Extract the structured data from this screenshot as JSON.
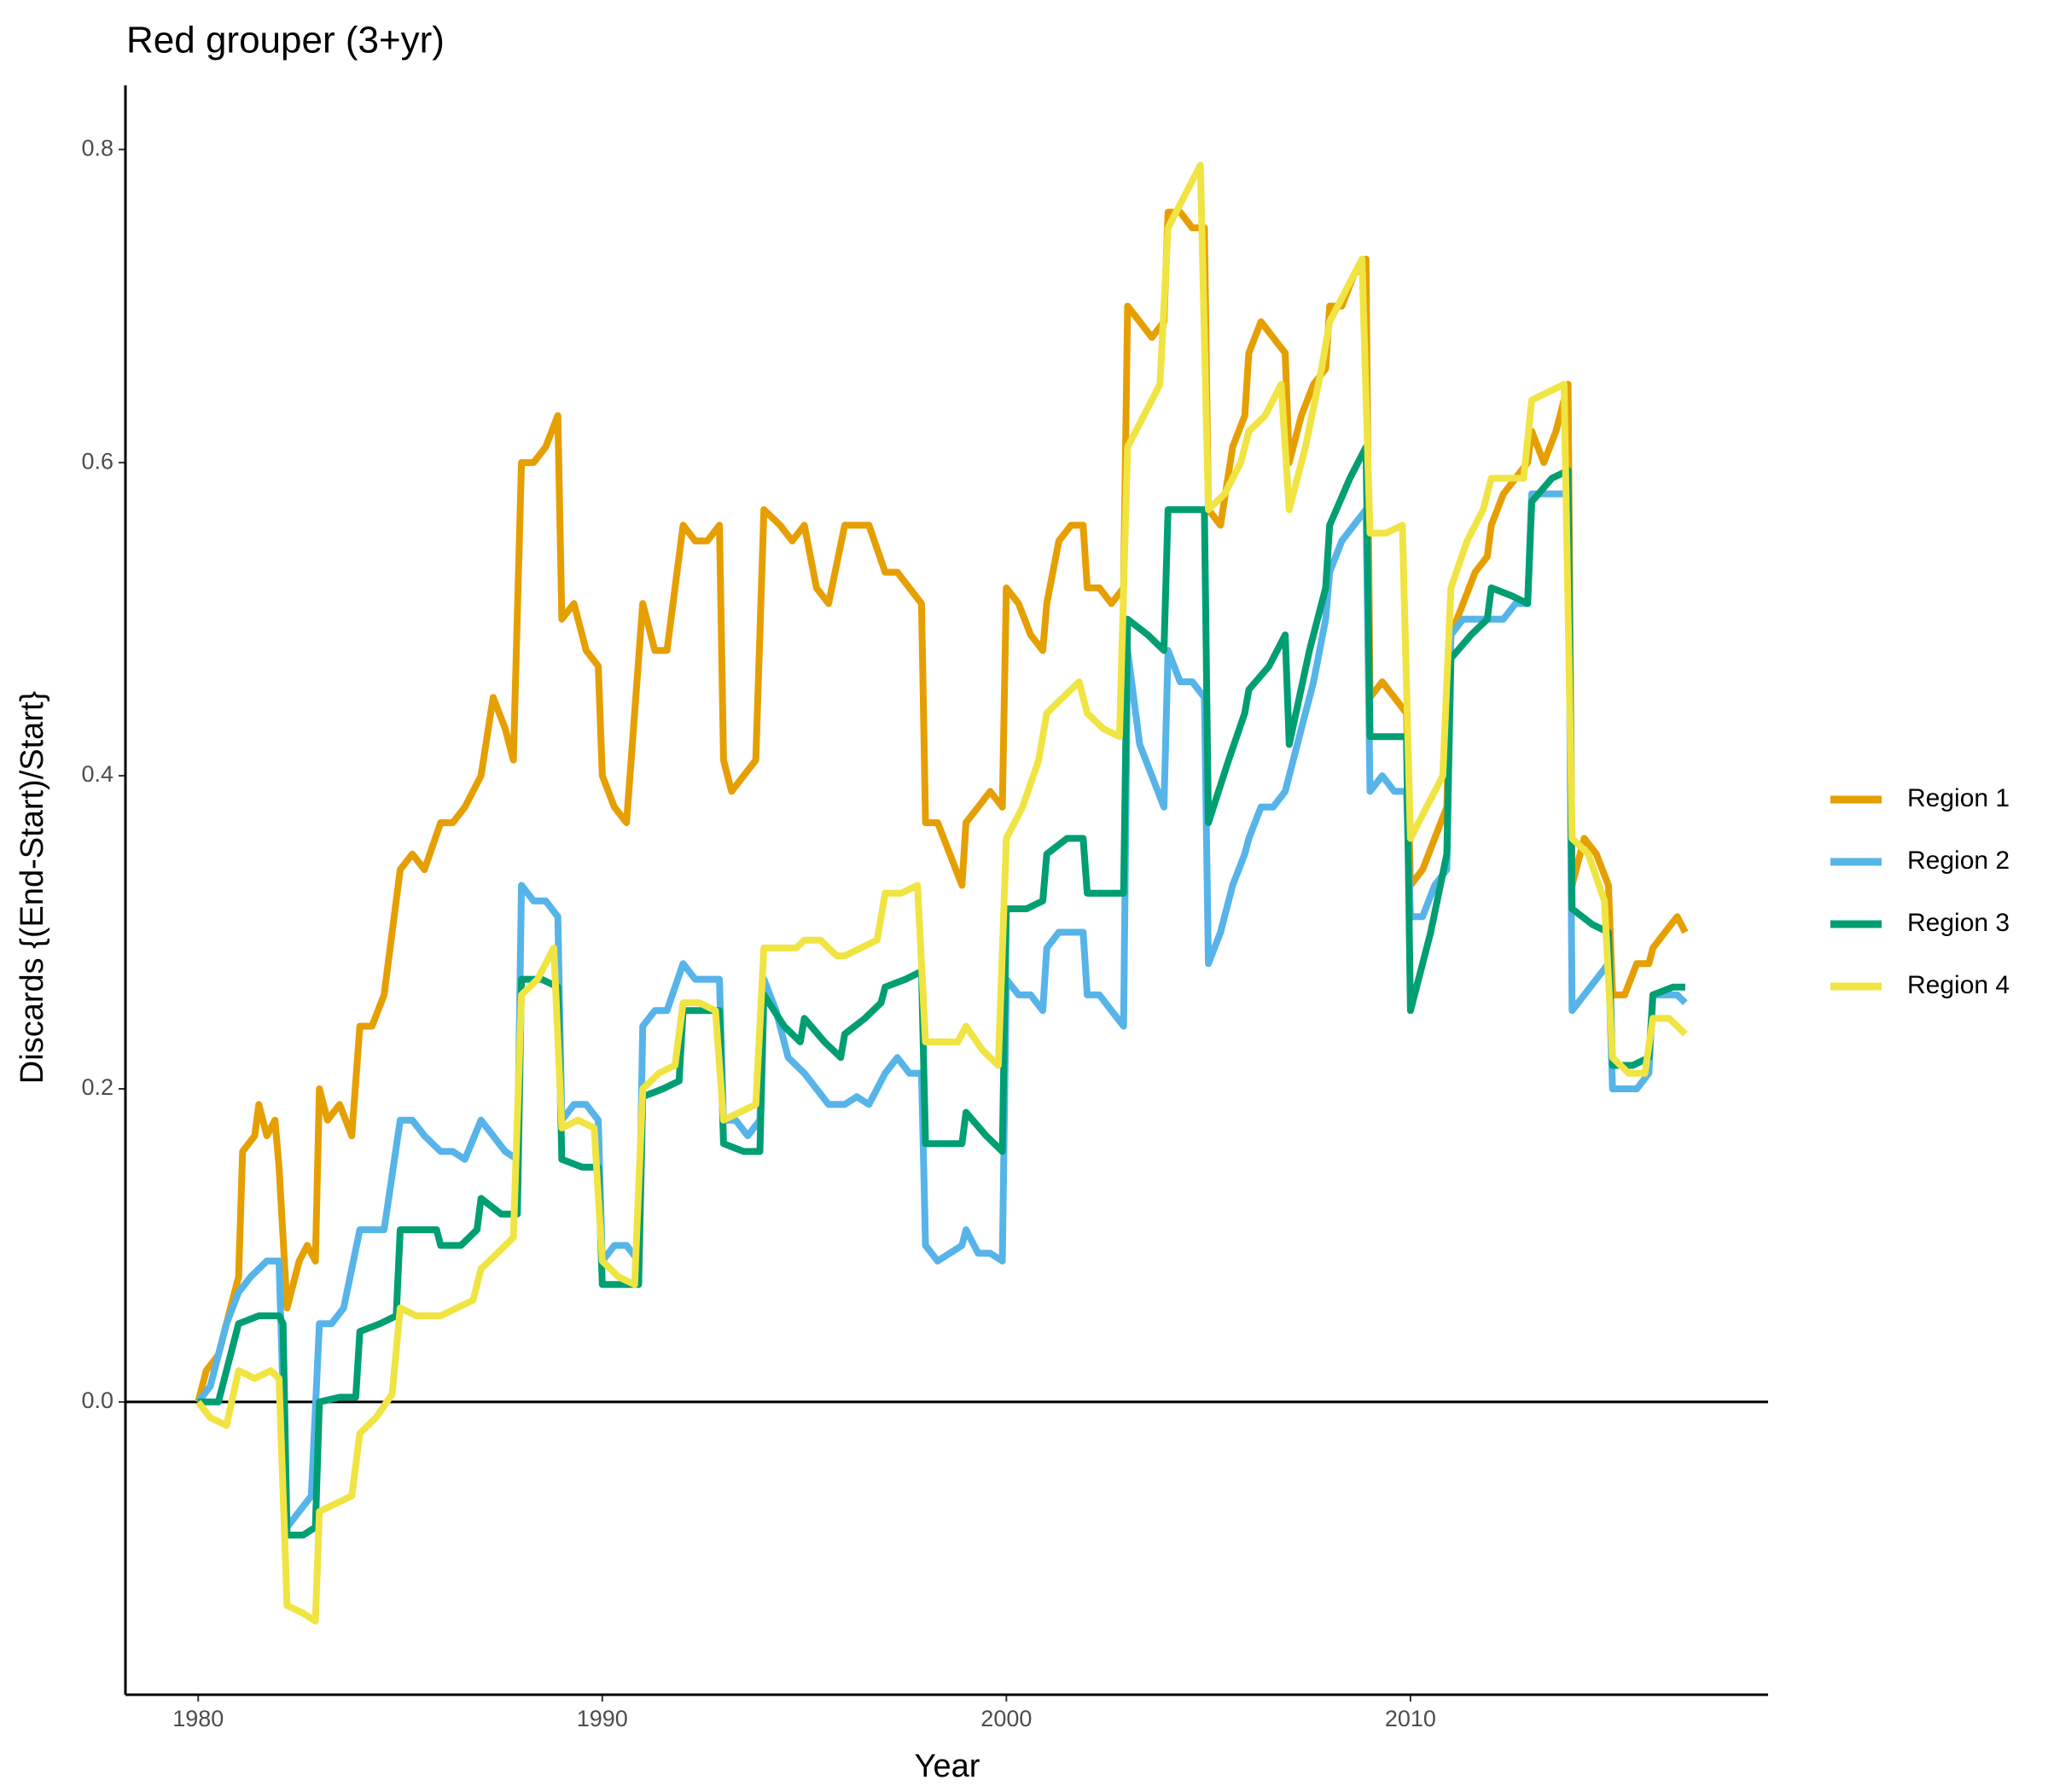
{
  "chart_data": {
    "type": "line",
    "title": "Red grouper (3+yr)",
    "x_label": "Year",
    "y_label": "Discards {(End-Start)/Start}",
    "xlim": [
      1978.2,
      2018.85
    ],
    "ylim": [
      -0.187,
      0.841
    ],
    "xticks": [
      1980,
      1990,
      2000,
      2010
    ],
    "yticks": [
      {
        "value": 0,
        "label": "0.0"
      },
      0.2,
      0.4,
      0.6,
      0.8
    ],
    "hline": 0,
    "grid": false,
    "legend": "right",
    "series": [
      {
        "name": "Region 1",
        "color": "#E69F00",
        "x": [
          1980.0,
          1980.2,
          1980.5,
          1980.8,
          1981.0,
          1981.1,
          1981.4,
          1981.5,
          1981.7,
          1981.9,
          1982.0,
          1982.2,
          1982.5,
          1982.7,
          1982.9,
          1983.0,
          1983.2,
          1983.5,
          1983.8,
          1984.0,
          1984.3,
          1984.6,
          1985.0,
          1985.3,
          1985.6,
          1986.0,
          1986.3,
          1986.6,
          1987.0,
          1987.3,
          1987.6,
          1987.8,
          1988.0,
          1988.3,
          1988.6,
          1988.9,
          1989.0,
          1989.3,
          1989.6,
          1989.9,
          1990.0,
          1990.3,
          1990.6,
          1991.0,
          1991.3,
          1991.6,
          1992.0,
          1992.3,
          1992.6,
          1992.9,
          1993.0,
          1993.2,
          1993.5,
          1993.8,
          1994.0,
          1994.4,
          1994.7,
          1995.0,
          1995.3,
          1995.6,
          1996.0,
          1996.3,
          1996.6,
          1997.0,
          1997.3,
          1997.6,
          1997.9,
          1998.0,
          1998.3,
          1998.6,
          1998.9,
          1999.0,
          1999.3,
          1999.6,
          1999.9,
          2000.0,
          2000.3,
          2000.6,
          2000.9,
          2001.0,
          2001.3,
          2001.6,
          2001.9,
          2002.0,
          2002.3,
          2002.6,
          2002.9,
          2003.0,
          2003.3,
          2003.6,
          2003.9,
          2004.0,
          2004.3,
          2004.6,
          2004.9,
          2005.0,
          2005.3,
          2005.6,
          2005.9,
          2006.0,
          2006.3,
          2006.6,
          2006.9,
          2007.0,
          2007.3,
          2007.6,
          2007.9,
          2008.0,
          2008.3,
          2008.6,
          2008.9,
          2009.0,
          2009.3,
          2009.6,
          2009.9,
          2010.0,
          2010.3,
          2010.6,
          2010.9,
          2011.0,
          2011.3,
          2011.6,
          2011.9,
          2012.0,
          2012.3,
          2012.6,
          2012.9,
          2013.0,
          2013.3,
          2013.6,
          2013.9,
          2014.0,
          2014.3,
          2014.6,
          2014.9,
          2015.0,
          2015.3,
          2015.6,
          2015.9,
          2016.0,
          2016.3,
          2016.6,
          2016.8
        ],
        "values": [
          0.0,
          0.02,
          0.03,
          0.06,
          0.08,
          0.16,
          0.17,
          0.19,
          0.17,
          0.18,
          0.15,
          0.06,
          0.09,
          0.1,
          0.09,
          0.2,
          0.18,
          0.19,
          0.17,
          0.24,
          0.24,
          0.26,
          0.34,
          0.35,
          0.34,
          0.37,
          0.37,
          0.38,
          0.4,
          0.45,
          0.43,
          0.41,
          0.6,
          0.6,
          0.61,
          0.63,
          0.5,
          0.51,
          0.48,
          0.47,
          0.4,
          0.38,
          0.37,
          0.51,
          0.48,
          0.48,
          0.56,
          0.55,
          0.55,
          0.56,
          0.41,
          0.39,
          0.4,
          0.41,
          0.57,
          0.56,
          0.55,
          0.56,
          0.52,
          0.51,
          0.56,
          0.56,
          0.56,
          0.53,
          0.53,
          0.52,
          0.51,
          0.37,
          0.37,
          0.35,
          0.33,
          0.37,
          0.38,
          0.39,
          0.38,
          0.52,
          0.51,
          0.49,
          0.48,
          0.51,
          0.55,
          0.56,
          0.56,
          0.52,
          0.52,
          0.51,
          0.52,
          0.7,
          0.69,
          0.68,
          0.69,
          0.76,
          0.76,
          0.75,
          0.75,
          0.57,
          0.56,
          0.61,
          0.63,
          0.67,
          0.69,
          0.68,
          0.67,
          0.6,
          0.63,
          0.65,
          0.66,
          0.7,
          0.7,
          0.72,
          0.73,
          0.45,
          0.46,
          0.45,
          0.44,
          0.33,
          0.34,
          0.36,
          0.38,
          0.49,
          0.51,
          0.53,
          0.54,
          0.56,
          0.58,
          0.59,
          0.6,
          0.62,
          0.6,
          0.62,
          0.65,
          0.33,
          0.36,
          0.35,
          0.33,
          0.26,
          0.26,
          0.28,
          0.28,
          0.29,
          0.3,
          0.31,
          0.3
        ]
      },
      {
        "name": "Region 2",
        "color": "#56B4E9",
        "x": [
          1980.0,
          1980.3,
          1980.7,
          1981.0,
          1981.3,
          1981.7,
          1982.0,
          1982.2,
          1982.5,
          1982.8,
          1983.0,
          1983.3,
          1983.6,
          1984.0,
          1984.3,
          1984.6,
          1985.0,
          1985.3,
          1985.6,
          1986.0,
          1986.3,
          1986.6,
          1987.0,
          1987.3,
          1987.6,
          1987.9,
          1988.0,
          1988.3,
          1988.6,
          1988.9,
          1989.0,
          1989.3,
          1989.6,
          1989.9,
          1990.0,
          1990.3,
          1990.6,
          1990.9,
          1991.0,
          1991.3,
          1991.6,
          1992.0,
          1992.3,
          1992.6,
          1992.9,
          1993.0,
          1993.3,
          1993.6,
          1993.9,
          1994.0,
          1994.3,
          1994.6,
          1995.0,
          1995.3,
          1995.6,
          1996.0,
          1996.3,
          1996.6,
          1997.0,
          1997.3,
          1997.6,
          1997.9,
          1998.0,
          1998.3,
          1998.6,
          1998.9,
          1999.0,
          1999.3,
          1999.6,
          1999.9,
          2000.0,
          2000.3,
          2000.6,
          2000.9,
          2001.0,
          2001.3,
          2001.6,
          2001.9,
          2002.0,
          2002.3,
          2002.6,
          2002.9,
          2003.0,
          2003.3,
          2003.6,
          2003.9,
          2004.0,
          2004.3,
          2004.6,
          2004.9,
          2005.0,
          2005.3,
          2005.6,
          2005.9,
          2006.0,
          2006.3,
          2006.6,
          2006.9,
          2007.0,
          2007.3,
          2007.6,
          2007.9,
          2008.0,
          2008.3,
          2008.6,
          2008.9,
          2009.0,
          2009.3,
          2009.6,
          2009.9,
          2010.0,
          2010.3,
          2010.6,
          2010.9,
          2011.0,
          2011.3,
          2011.6,
          2011.9,
          2012.0,
          2012.3,
          2012.6,
          2012.9,
          2013.0,
          2013.3,
          2013.6,
          2013.9,
          2014.0,
          2014.3,
          2014.6,
          2014.9,
          2015.0,
          2015.3,
          2015.6,
          2015.9,
          2016.0,
          2016.3,
          2016.6,
          2016.8
        ],
        "values": [
          0.0,
          0.01,
          0.05,
          0.07,
          0.08,
          0.09,
          0.09,
          -0.08,
          -0.07,
          -0.06,
          0.05,
          0.05,
          0.06,
          0.11,
          0.11,
          0.11,
          0.18,
          0.18,
          0.17,
          0.16,
          0.16,
          0.155,
          0.18,
          0.17,
          0.16,
          0.155,
          0.33,
          0.32,
          0.32,
          0.31,
          0.18,
          0.19,
          0.19,
          0.18,
          0.09,
          0.1,
          0.1,
          0.09,
          0.24,
          0.25,
          0.25,
          0.28,
          0.27,
          0.27,
          0.27,
          0.18,
          0.18,
          0.17,
          0.18,
          0.27,
          0.25,
          0.22,
          0.21,
          0.2,
          0.19,
          0.19,
          0.195,
          0.19,
          0.21,
          0.22,
          0.21,
          0.21,
          0.1,
          0.09,
          0.095,
          0.1,
          0.11,
          0.095,
          0.095,
          0.09,
          0.27,
          0.26,
          0.26,
          0.25,
          0.29,
          0.3,
          0.3,
          0.3,
          0.26,
          0.26,
          0.25,
          0.24,
          0.48,
          0.42,
          0.4,
          0.38,
          0.48,
          0.46,
          0.46,
          0.45,
          0.28,
          0.3,
          0.33,
          0.35,
          0.36,
          0.38,
          0.38,
          0.39,
          0.4,
          0.43,
          0.46,
          0.5,
          0.53,
          0.55,
          0.56,
          0.57,
          0.39,
          0.4,
          0.39,
          0.39,
          0.31,
          0.31,
          0.33,
          0.34,
          0.49,
          0.5,
          0.5,
          0.5,
          0.5,
          0.5,
          0.51,
          0.51,
          0.58,
          0.58,
          0.58,
          0.58,
          0.25,
          0.26,
          0.27,
          0.28,
          0.2,
          0.2,
          0.2,
          0.21,
          0.26,
          0.26,
          0.26,
          0.255
        ]
      },
      {
        "name": "Region 3",
        "color": "#009E73",
        "x": [
          1980.0,
          1980.5,
          1981.0,
          1981.5,
          1982.0,
          1982.1,
          1982.2,
          1982.6,
          1982.9,
          1983.0,
          1983.5,
          1983.9,
          1984.0,
          1984.5,
          1984.9,
          1985.0,
          1985.5,
          1985.9,
          1986.0,
          1986.5,
          1986.9,
          1987.0,
          1987.5,
          1987.9,
          1988.0,
          1988.5,
          1988.9,
          1989.0,
          1989.5,
          1989.9,
          1990.0,
          1990.5,
          1990.9,
          1991.0,
          1991.5,
          1991.9,
          1992.0,
          1992.5,
          1992.9,
          1993.0,
          1993.5,
          1993.9,
          1994.0,
          1994.5,
          1994.9,
          1995.0,
          1995.5,
          1995.9,
          1996.0,
          1996.5,
          1996.9,
          1997.0,
          1997.5,
          1997.9,
          1998.0,
          1998.5,
          1998.9,
          1999.0,
          1999.5,
          1999.9,
          2000.0,
          2000.5,
          2000.9,
          2001.0,
          2001.5,
          2001.9,
          2002.0,
          2002.5,
          2002.9,
          2003.0,
          2003.5,
          2003.9,
          2004.0,
          2004.5,
          2004.9,
          2005.0,
          2005.5,
          2005.9,
          2006.0,
          2006.5,
          2006.9,
          2007.0,
          2007.5,
          2007.9,
          2008.0,
          2008.5,
          2008.9,
          2009.0,
          2009.5,
          2009.9,
          2010.0,
          2010.5,
          2010.9,
          2011.0,
          2011.5,
          2011.9,
          2012.0,
          2012.5,
          2012.9,
          2013.0,
          2013.5,
          2013.9,
          2014.0,
          2014.5,
          2014.9,
          2015.0,
          2015.5,
          2015.9,
          2016.0,
          2016.5,
          2016.8
        ],
        "values": [
          0.0,
          0.0,
          0.05,
          0.055,
          0.055,
          0.05,
          -0.085,
          -0.085,
          -0.08,
          0.0,
          0.003,
          0.003,
          0.045,
          0.05,
          0.055,
          0.11,
          0.11,
          0.11,
          0.1,
          0.1,
          0.11,
          0.13,
          0.12,
          0.12,
          0.27,
          0.27,
          0.265,
          0.155,
          0.15,
          0.15,
          0.075,
          0.075,
          0.075,
          0.195,
          0.2,
          0.205,
          0.25,
          0.25,
          0.25,
          0.165,
          0.16,
          0.16,
          0.26,
          0.24,
          0.23,
          0.245,
          0.23,
          0.22,
          0.235,
          0.245,
          0.255,
          0.265,
          0.27,
          0.275,
          0.165,
          0.165,
          0.165,
          0.185,
          0.17,
          0.16,
          0.315,
          0.315,
          0.32,
          0.35,
          0.36,
          0.36,
          0.325,
          0.325,
          0.325,
          0.5,
          0.49,
          0.48,
          0.57,
          0.57,
          0.57,
          0.37,
          0.41,
          0.44,
          0.455,
          0.47,
          0.49,
          0.42,
          0.48,
          0.52,
          0.56,
          0.59,
          0.61,
          0.425,
          0.425,
          0.425,
          0.25,
          0.3,
          0.35,
          0.475,
          0.49,
          0.5,
          0.52,
          0.515,
          0.51,
          0.575,
          0.59,
          0.595,
          0.315,
          0.305,
          0.3,
          0.215,
          0.215,
          0.22,
          0.26,
          0.265,
          0.265
        ]
      },
      {
        "name": "Region 4",
        "color": "#F0E442",
        "x": [
          1980.0,
          1980.3,
          1980.7,
          1981.0,
          1981.4,
          1981.8,
          1982.0,
          1982.2,
          1982.6,
          1982.9,
          1983.0,
          1983.4,
          1983.8,
          1984.0,
          1984.4,
          1984.8,
          1985.0,
          1985.4,
          1985.8,
          1986.0,
          1986.4,
          1986.8,
          1987.0,
          1987.4,
          1987.8,
          1988.0,
          1988.4,
          1988.8,
          1989.0,
          1989.4,
          1989.8,
          1990.0,
          1990.4,
          1990.8,
          1991.0,
          1991.4,
          1991.8,
          1992.0,
          1992.4,
          1992.8,
          1993.0,
          1993.4,
          1993.8,
          1994.0,
          1994.4,
          1994.8,
          1995.0,
          1995.4,
          1995.8,
          1996.0,
          1996.4,
          1996.8,
          1997.0,
          1997.4,
          1997.8,
          1998.0,
          1998.4,
          1998.8,
          1999.0,
          1999.4,
          1999.8,
          2000.0,
          2000.4,
          2000.8,
          2001.0,
          2001.4,
          2001.8,
          2002.0,
          2002.4,
          2002.8,
          2003.0,
          2003.4,
          2003.8,
          2004.0,
          2004.4,
          2004.8,
          2005.0,
          2005.4,
          2005.8,
          2006.0,
          2006.4,
          2006.8,
          2007.0,
          2007.4,
          2007.8,
          2008.0,
          2008.4,
          2008.8,
          2009.0,
          2009.4,
          2009.8,
          2010.0,
          2010.4,
          2010.8,
          2011.0,
          2011.4,
          2011.8,
          2012.0,
          2012.4,
          2012.8,
          2013.0,
          2013.4,
          2013.8,
          2014.0,
          2014.4,
          2014.8,
          2015.0,
          2015.4,
          2015.8,
          2016.0,
          2016.4,
          2016.8
        ],
        "values": [
          0.0,
          -0.01,
          -0.015,
          0.02,
          0.015,
          0.02,
          0.015,
          -0.13,
          -0.135,
          -0.14,
          -0.07,
          -0.065,
          -0.06,
          -0.02,
          -0.01,
          0.005,
          0.06,
          0.055,
          0.055,
          0.055,
          0.06,
          0.065,
          0.085,
          0.095,
          0.105,
          0.26,
          0.27,
          0.29,
          0.175,
          0.18,
          0.175,
          0.09,
          0.08,
          0.075,
          0.2,
          0.21,
          0.215,
          0.255,
          0.255,
          0.25,
          0.18,
          0.185,
          0.19,
          0.29,
          0.29,
          0.29,
          0.295,
          0.295,
          0.285,
          0.285,
          0.29,
          0.295,
          0.325,
          0.325,
          0.33,
          0.23,
          0.23,
          0.23,
          0.24,
          0.225,
          0.215,
          0.36,
          0.38,
          0.41,
          0.44,
          0.45,
          0.46,
          0.44,
          0.43,
          0.425,
          0.61,
          0.63,
          0.65,
          0.75,
          0.77,
          0.79,
          0.57,
          0.58,
          0.6,
          0.62,
          0.63,
          0.65,
          0.57,
          0.61,
          0.66,
          0.69,
          0.71,
          0.73,
          0.555,
          0.555,
          0.56,
          0.36,
          0.38,
          0.4,
          0.52,
          0.55,
          0.57,
          0.59,
          0.59,
          0.59,
          0.64,
          0.645,
          0.65,
          0.36,
          0.35,
          0.32,
          0.22,
          0.21,
          0.21,
          0.245,
          0.245,
          0.235
        ]
      }
    ]
  }
}
